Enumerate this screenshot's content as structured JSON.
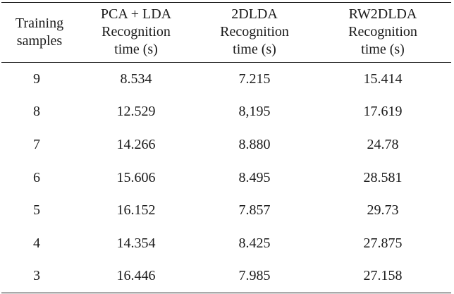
{
  "table": {
    "headers": [
      [
        "Training",
        "samples"
      ],
      [
        "PCA + LDA",
        "Recognition",
        "time (s)"
      ],
      [
        "2DLDA",
        "Recognition",
        "time (s)"
      ],
      [
        "RW2DLDA",
        "Recognition",
        "time (s)"
      ]
    ],
    "rows": [
      [
        "9",
        "8.534",
        "7.215",
        "15.414"
      ],
      [
        "8",
        "12.529",
        "8,195",
        "17.619"
      ],
      [
        "7",
        "14.266",
        "8.880",
        "24.78"
      ],
      [
        "6",
        "15.606",
        "8.495",
        "28.581"
      ],
      [
        "5",
        "16.152",
        "7.857",
        "29.73"
      ],
      [
        "4",
        "14.354",
        "8.425",
        "27.875"
      ],
      [
        "3",
        "16.446",
        "7.985",
        "27.158"
      ]
    ]
  }
}
